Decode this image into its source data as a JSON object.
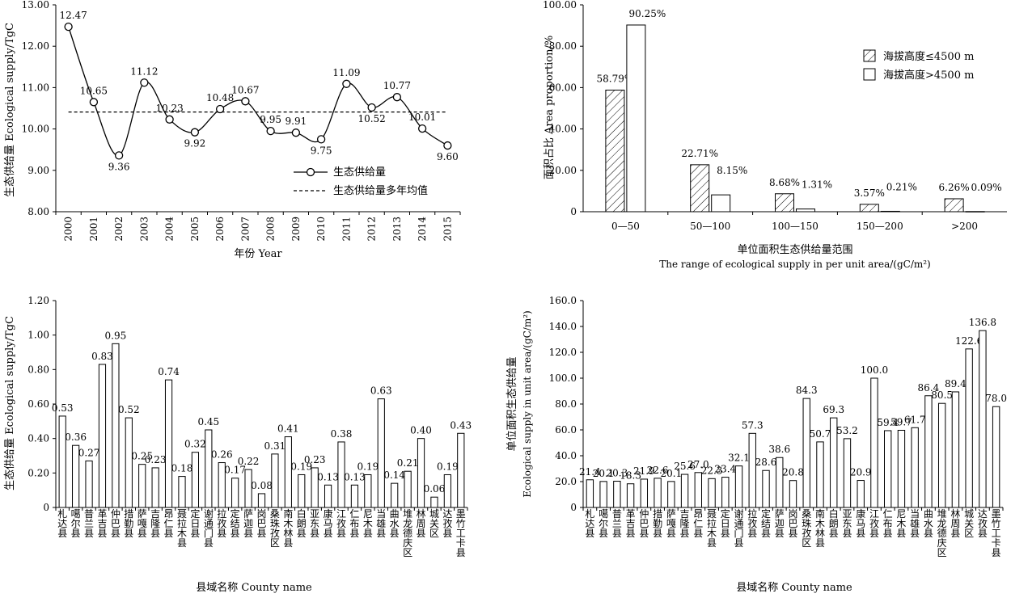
{
  "chart_data": [
    {
      "id": "a",
      "type": "line",
      "title": "",
      "xlabel": "年份 Year",
      "ylabel": "生态供给量 Ecological supply/TgC",
      "ylim": [
        8.0,
        13.0
      ],
      "yticks": [
        "8.00",
        "9.00",
        "10.00",
        "11.00",
        "12.00",
        "13.00"
      ],
      "categories": [
        "2000",
        "2001",
        "2002",
        "2003",
        "2004",
        "2005",
        "2006",
        "2007",
        "2008",
        "2009",
        "2010",
        "2011",
        "2012",
        "2013",
        "2014",
        "2015"
      ],
      "series": [
        {
          "name": "生态供给量",
          "values": [
            12.47,
            10.65,
            9.36,
            11.12,
            10.23,
            9.92,
            10.48,
            10.67,
            9.95,
            9.91,
            9.75,
            11.09,
            10.52,
            10.77,
            10.01,
            9.6
          ],
          "labels": [
            "12.47",
            "10.65",
            "9.36",
            "11.12",
            "10.23",
            "9.92",
            "10.48",
            "10.67",
            "9.95",
            "9.91",
            "9.75",
            "11.09",
            "10.52",
            "10.77",
            "10.01",
            "9.60"
          ]
        },
        {
          "name": "生态供给量多年均值",
          "values": [
            10.41,
            10.41,
            10.41,
            10.41,
            10.41,
            10.41,
            10.41,
            10.41,
            10.41,
            10.41,
            10.41,
            10.41,
            10.41,
            10.41,
            10.41,
            10.41
          ]
        }
      ],
      "legend_position": "bottom-right",
      "grid": false
    },
    {
      "id": "b",
      "type": "bar",
      "title": "",
      "xlabel": "单位面积生态供给量范围",
      "xlabel2": "The range of ecological supply in per unit area/(gC/m²)",
      "ylabel": "面积占比 Area proportion/%",
      "ylim": [
        0,
        100
      ],
      "yticks": [
        "0",
        "20.00",
        "40.00",
        "60.00",
        "80.00",
        "100.00"
      ],
      "categories": [
        "0—50",
        "50—100",
        "100—150",
        "150—200",
        ">200"
      ],
      "series": [
        {
          "name": "海拔高度≤4500 m",
          "values": [
            58.79,
            22.71,
            8.68,
            3.57,
            6.26
          ],
          "labels": [
            "58.79%",
            "22.71%",
            "8.68%",
            "3.57%",
            "6.26%"
          ],
          "fill": "hatch"
        },
        {
          "name": "海拔高度>4500 m",
          "values": [
            90.25,
            8.15,
            1.31,
            0.21,
            0.09
          ],
          "labels": [
            "90.25%",
            "8.15%",
            "1.31%",
            "0.21%",
            "0.09%"
          ],
          "fill": "white"
        }
      ],
      "legend_position": "top-right",
      "grid": false
    },
    {
      "id": "c",
      "type": "bar",
      "title": "",
      "xlabel": "县域名称 County name",
      "ylabel": "生态供给量 Ecological supply/TgC",
      "ylim": [
        0,
        1.2
      ],
      "yticks": [
        "0",
        "0.20",
        "0.40",
        "0.60",
        "0.80",
        "1.00",
        "1.20"
      ],
      "categories": [
        "札达县",
        "噶尔县",
        "普兰县",
        "革吉县",
        "仲巴县",
        "措勤县",
        "萨嘎县",
        "吉隆县",
        "昂仁县",
        "聂拉木县",
        "定日县",
        "谢通门县",
        "拉孜县",
        "定结县",
        "萨迦县",
        "岗巴县",
        "桑珠孜区",
        "南木林县",
        "白朗县",
        "亚东县",
        "康马县",
        "江孜县",
        "仁布县",
        "尼木县",
        "当雄县",
        "曲水县",
        "堆龙德庆区",
        "林周县",
        "城关区",
        "达孜县",
        "墨竹工卡县"
      ],
      "values": [
        0.53,
        0.36,
        0.27,
        0.83,
        0.95,
        0.52,
        0.25,
        0.23,
        0.74,
        0.18,
        0.32,
        0.45,
        0.26,
        0.17,
        0.22,
        0.08,
        0.31,
        0.41,
        0.19,
        0.23,
        0.13,
        0.38,
        0.13,
        0.19,
        0.63,
        0.14,
        0.21,
        0.4,
        0.06,
        0.19,
        0.43
      ],
      "labels": [
        "0.53",
        "0.36",
        "0.27",
        "0.83",
        "0.95",
        "0.52",
        "0.25",
        "0.23",
        "0.74",
        "0.18",
        "0.32",
        "0.45",
        "0.26",
        "0.17",
        "0.22",
        "0.08",
        "0.31",
        "0.41",
        "0.19",
        "0.23",
        "0.13",
        "0.38",
        "0.13",
        "0.19",
        "0.63",
        "0.14",
        "0.21",
        "0.40",
        "0.06",
        "0.19",
        "0.43"
      ],
      "grid": false
    },
    {
      "id": "d",
      "type": "bar",
      "title": "",
      "xlabel": "县域名称 County name",
      "ylabel": "单位面积生态供给量",
      "ylabel2": "Ecological supply in  unit area/(gC/m²)",
      "ylim": [
        0,
        160
      ],
      "yticks": [
        "0",
        "20.0",
        "40.0",
        "60.0",
        "80.0",
        "100.0",
        "120.0",
        "140.0",
        "160.0"
      ],
      "categories": [
        "札达县",
        "噶尔县",
        "普兰县",
        "革吉县",
        "仲巴县",
        "措勤县",
        "萨嘎县",
        "吉隆县",
        "昂仁县",
        "聂拉木县",
        "定日县",
        "谢通门县",
        "拉孜县",
        "定结县",
        "萨迦县",
        "岗巴县",
        "桑珠孜区",
        "南木林县",
        "白朗县",
        "亚东县",
        "康马县",
        "江孜县",
        "仁布县",
        "尼木县",
        "当雄县",
        "曲水县",
        "堆龙德庆区",
        "林周县",
        "城关区",
        "达孜县",
        "墨竹工卡县"
      ],
      "values": [
        21.4,
        20.1,
        20.3,
        18.3,
        21.9,
        22.6,
        20.1,
        25.6,
        27.0,
        22.3,
        23.4,
        32.1,
        57.3,
        28.6,
        38.6,
        20.8,
        84.3,
        50.7,
        69.3,
        53.2,
        20.9,
        100.0,
        59.4,
        59.7,
        61.7,
        86.4,
        80.5,
        89.4,
        122.6,
        136.8,
        78.0
      ],
      "labels": [
        "21.4",
        "20.1",
        "20.3",
        "18.3",
        "21.9",
        "22.6",
        "20.1",
        "25.6",
        "27.0",
        "22.3",
        "23.4",
        "32.1",
        "57.3",
        "28.6",
        "38.6",
        "20.8",
        "84.3",
        "50.7",
        "69.3",
        "53.2",
        "20.9",
        "100.0",
        "59.4",
        "59.7",
        "61.7",
        "86.4",
        "80.5",
        "89.4",
        "122.6",
        "136.8",
        "78.0"
      ],
      "grid": false
    }
  ]
}
